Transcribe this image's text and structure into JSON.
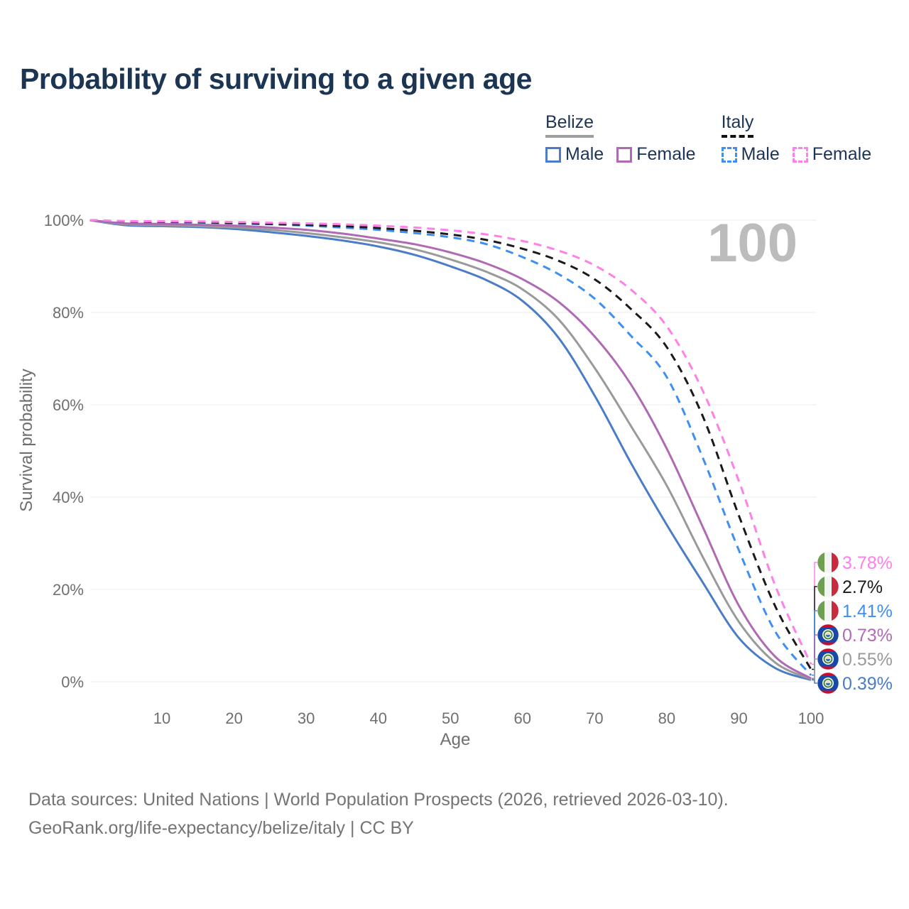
{
  "title": "Probability of surviving to a given age",
  "legend": {
    "groups": [
      {
        "label": "Belize",
        "items": [
          {
            "label": "Male"
          },
          {
            "label": "Female"
          }
        ]
      },
      {
        "label": "Italy",
        "items": [
          {
            "label": "Male"
          },
          {
            "label": "Female"
          }
        ]
      }
    ]
  },
  "footer": {
    "line1": "Data sources: United Nations | World Population Prospects (2026, retrieved 2026-03-10).",
    "line2": "GeoRank.org/life-expectancy/belize/italy | CC BY"
  },
  "chart_data": {
    "type": "line",
    "title": "Probability of surviving to a given age",
    "xlabel": "Age",
    "ylabel": "Survival probability",
    "hover_age": "100",
    "xlim": [
      0,
      100
    ],
    "ylim": [
      0,
      100
    ],
    "grid": "horizontal",
    "y_ticks": [
      {
        "label": "100%",
        "value": 100
      },
      {
        "label": "80%",
        "value": 80
      },
      {
        "label": "60%",
        "value": 60
      },
      {
        "label": "40%",
        "value": 40
      },
      {
        "label": "20%",
        "value": 20
      },
      {
        "label": "0%",
        "value": 0
      }
    ],
    "x_ticks": [
      {
        "label": "10",
        "value": 10
      },
      {
        "label": "20",
        "value": 20
      },
      {
        "label": "30",
        "value": 30
      },
      {
        "label": "40",
        "value": 40
      },
      {
        "label": "50",
        "value": 50
      },
      {
        "label": "60",
        "value": 60
      },
      {
        "label": "70",
        "value": 70
      },
      {
        "label": "80",
        "value": 80
      },
      {
        "label": "90",
        "value": 90
      },
      {
        "label": "100",
        "value": 100
      }
    ],
    "x": [
      0,
      5,
      10,
      15,
      20,
      25,
      30,
      35,
      40,
      45,
      50,
      55,
      60,
      65,
      70,
      75,
      80,
      85,
      90,
      95,
      100
    ],
    "series": [
      {
        "name": "Belize Male",
        "country": "belize",
        "sex": "male",
        "color": "#4a7cc7",
        "dash": "solid",
        "end_label": "0.39%",
        "label_row": 5,
        "flag": "belize",
        "values": [
          100,
          98.9,
          98.7,
          98.5,
          98.1,
          97.4,
          96.6,
          95.6,
          94.3,
          92.5,
          90.0,
          87.0,
          82.5,
          74.5,
          62.0,
          47.5,
          34.0,
          21.5,
          9.5,
          3.0,
          0.39
        ]
      },
      {
        "name": "Belize Both sexes",
        "country": "belize",
        "sex": "both",
        "color": "#9a9a9a",
        "dash": "solid",
        "end_label": "0.55%",
        "label_row": 4,
        "flag": "belize",
        "values": [
          100,
          99.1,
          98.9,
          98.7,
          98.4,
          97.9,
          97.2,
          96.3,
          95.2,
          93.7,
          91.5,
          88.8,
          85.0,
          78.5,
          68.0,
          55.5,
          42.5,
          27.0,
          13.0,
          4.2,
          0.55
        ]
      },
      {
        "name": "Belize Female",
        "country": "belize",
        "sex": "female",
        "color": "#b06ab3",
        "dash": "solid",
        "end_label": "0.73%",
        "label_row": 3,
        "flag": "belize",
        "values": [
          100,
          99.3,
          99.2,
          99.0,
          98.8,
          98.4,
          97.9,
          97.1,
          96.0,
          94.8,
          93.0,
          90.6,
          87.2,
          82.3,
          74.8,
          64.5,
          50.5,
          33.5,
          16.5,
          5.5,
          0.73
        ]
      },
      {
        "name": "Italy Male",
        "country": "italy",
        "sex": "male",
        "color": "#3f8ef2",
        "dash": "dashed",
        "end_label": "1.41%",
        "label_row": 2,
        "flag": "italy",
        "values": [
          100,
          99.7,
          99.6,
          99.5,
          99.3,
          99.1,
          98.8,
          98.4,
          97.9,
          97.2,
          96.3,
          94.8,
          92.0,
          88.3,
          83.0,
          75.0,
          66.0,
          48.5,
          28.5,
          11.0,
          1.41
        ]
      },
      {
        "name": "Italy Both sexes",
        "country": "italy",
        "sex": "both",
        "color": "#1a1a1a",
        "dash": "dashed",
        "end_label": "2.7%",
        "label_row": 1,
        "flag": "italy",
        "values": [
          100,
          99.75,
          99.65,
          99.55,
          99.4,
          99.2,
          99.0,
          98.7,
          98.3,
          97.7,
          96.9,
          95.7,
          93.8,
          91.2,
          87.2,
          80.8,
          72.5,
          57.5,
          36.0,
          16.5,
          2.7
        ]
      },
      {
        "name": "Italy Female",
        "country": "italy",
        "sex": "female",
        "color": "#ff80e8",
        "dash": "dashed",
        "end_label": "3.78%",
        "label_row": 0,
        "flag": "italy",
        "values": [
          100,
          99.8,
          99.75,
          99.7,
          99.6,
          99.45,
          99.3,
          99.1,
          98.8,
          98.4,
          97.8,
          96.9,
          95.5,
          93.4,
          90.2,
          85.0,
          77.0,
          63.0,
          43.5,
          21.0,
          3.78
        ]
      }
    ]
  }
}
